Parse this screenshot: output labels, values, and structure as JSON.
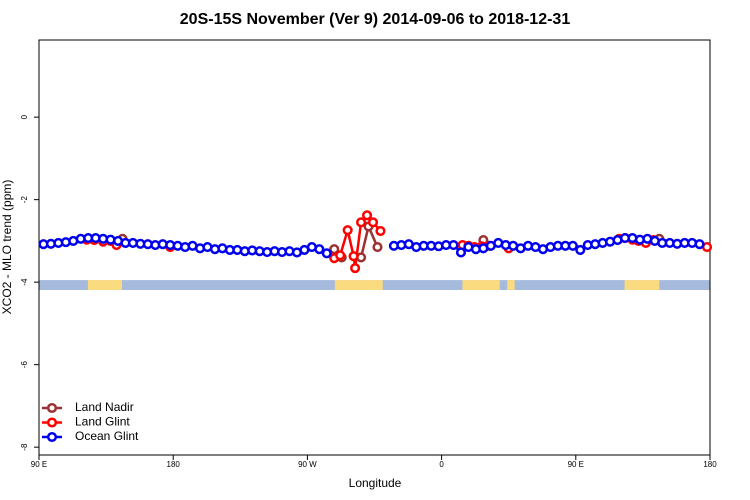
{
  "chart_data": {
    "type": "line",
    "title": "20S-15S November (Ver 9)   2014-09-06 to 2018-12-31",
    "x_label": "Longitude",
    "y_label": "XCO2 - MLO trend (ppm)",
    "xlim": [
      90,
      540
    ],
    "xticks": [
      {
        "value": 90,
        "label": "90 E"
      },
      {
        "value": 180,
        "label": "180"
      },
      {
        "value": 270,
        "label": "90 W"
      },
      {
        "value": 360,
        "label": "0"
      },
      {
        "value": 450,
        "label": "90 E"
      },
      {
        "value": 540,
        "label": "180"
      }
    ],
    "ylim": [
      -8.19,
      1.87
    ],
    "yticks": [
      0,
      -2,
      -4,
      -6,
      -8
    ],
    "legend": "bottom-left",
    "land_strip": {
      "ylim": [
        -4.19,
        -3.95
      ],
      "ocean_color": "#a5badc",
      "land_color": "#fbdb80",
      "land": [
        [
          122.8,
          145.6
        ],
        [
          288.4,
          320.5
        ],
        [
          374,
          399
        ],
        [
          404,
          409
        ],
        [
          482.7,
          506
        ]
      ]
    },
    "series": [
      {
        "name": "Land Nadir",
        "color": "#9b3232",
        "x": [
          146,
          288,
          293,
          306,
          311,
          317,
          388,
          506
        ],
        "values": [
          -2.95,
          -3.2,
          -3.4,
          -3.4,
          -2.65,
          -3.15,
          -2.98,
          -2.95
        ]
      },
      {
        "name": "Land Glint",
        "color": "#ff0000",
        "x": [
          122,
          127,
          133,
          138,
          142,
          178,
          288,
          292,
          297,
          301,
          302,
          306,
          310,
          314,
          319,
          374,
          378,
          382,
          387,
          392,
          405,
          479,
          483,
          488,
          492,
          497,
          502,
          538
        ],
        "values": [
          -2.97,
          -2.98,
          -3.02,
          -3.0,
          -3.1,
          -3.15,
          -3.42,
          -3.35,
          -2.74,
          -3.37,
          -3.66,
          -2.55,
          -2.38,
          -2.55,
          -2.76,
          -3.1,
          -3.12,
          -3.15,
          -3.13,
          -3.12,
          -3.18,
          -2.95,
          -2.93,
          -2.97,
          -3.0,
          -3.05,
          -2.98,
          -3.15
        ]
      },
      {
        "name": "Ocean Glint",
        "color": "#0000ee",
        "x": [
          93,
          98,
          103,
          108,
          113,
          118,
          123,
          128,
          133,
          138,
          143,
          148,
          153,
          158,
          163,
          168,
          173,
          178,
          183,
          188,
          193,
          198,
          203,
          208,
          213,
          218,
          223,
          228,
          233,
          238,
          243,
          248,
          253,
          258,
          263,
          268,
          273,
          278,
          283,
          328,
          333,
          338,
          343,
          348,
          353,
          358,
          363,
          368,
          373,
          378,
          383,
          388,
          393,
          398,
          403,
          408,
          413,
          418,
          423,
          428,
          433,
          438,
          443,
          448,
          453,
          458,
          463,
          468,
          473,
          478,
          483,
          488,
          493,
          498,
          503,
          508,
          513,
          518,
          523,
          528,
          533
        ],
        "values": [
          -3.08,
          -3.07,
          -3.05,
          -3.03,
          -3.0,
          -2.95,
          -2.93,
          -2.93,
          -2.95,
          -2.97,
          -3.0,
          -3.05,
          -3.05,
          -3.07,
          -3.08,
          -3.1,
          -3.08,
          -3.1,
          -3.12,
          -3.15,
          -3.12,
          -3.18,
          -3.15,
          -3.2,
          -3.18,
          -3.22,
          -3.22,
          -3.25,
          -3.23,
          -3.25,
          -3.27,
          -3.25,
          -3.27,
          -3.25,
          -3.28,
          -3.22,
          -3.15,
          -3.2,
          -3.3,
          -3.12,
          -3.1,
          -3.08,
          -3.15,
          -3.12,
          -3.12,
          -3.13,
          -3.1,
          -3.1,
          -3.28,
          -3.15,
          -3.2,
          -3.18,
          -3.12,
          -3.05,
          -3.1,
          -3.12,
          -3.18,
          -3.12,
          -3.15,
          -3.2,
          -3.15,
          -3.12,
          -3.12,
          -3.12,
          -3.22,
          -3.1,
          -3.08,
          -3.05,
          -3.02,
          -2.98,
          -2.93,
          -2.93,
          -2.97,
          -2.95,
          -3.0,
          -3.05,
          -3.05,
          -3.07,
          -3.05,
          -3.05,
          -3.08
        ]
      }
    ]
  }
}
